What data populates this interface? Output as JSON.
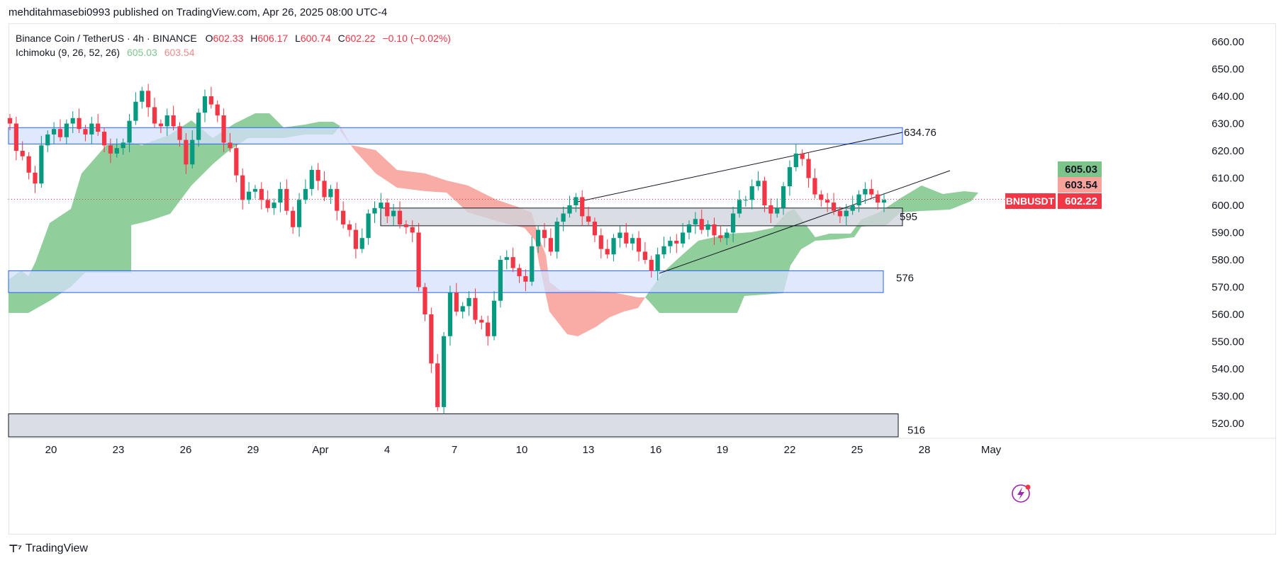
{
  "header": {
    "publisher_line": "mehditahmasebi0993 published on TradingView.com, Apr 26, 2025 08:00 UTC-4"
  },
  "legend": {
    "symbol": "Binance Coin / TetherUS · 4h · BINANCE",
    "open_label": "O",
    "open": "602.33",
    "high_label": "H",
    "high": "606.17",
    "low_label": "L",
    "low": "600.74",
    "close_label": "C",
    "close": "602.22",
    "change": "−0.10 (−0.02%)",
    "indicator": "Ichimoku (9, 26, 52, 26)",
    "indicator_v1": "605.03",
    "indicator_v2": "603.54"
  },
  "footer": {
    "brand": "TradingView"
  },
  "colors": {
    "up": "#089981",
    "down": "#f23645",
    "cloud_bull": "#7cc58a",
    "cloud_bear": "#f7a39b",
    "zone_blue": "#d4e0fb",
    "zone_gray": "#d1d4dc"
  },
  "chart_data": {
    "type": "candlestick",
    "title": "Binance Coin / TetherUS · 4h · BINANCE",
    "ylim": [
      515,
      665
    ],
    "y_ticks": [
      520,
      530,
      540,
      550,
      560,
      570,
      580,
      590,
      600,
      610,
      620,
      630,
      640,
      650,
      660
    ],
    "y_tick_labels": [
      "520.00",
      "530.00",
      "540.00",
      "550.00",
      "560.00",
      "570.00",
      "580.00",
      "590.00",
      "600.00",
      "610.00",
      "620.00",
      "630.00",
      "640.00",
      "650.00",
      "660.00"
    ],
    "x_tick_labels": [
      "20",
      "23",
      "26",
      "29",
      "Apr",
      "4",
      "7",
      "10",
      "13",
      "16",
      "19",
      "22",
      "25",
      "28",
      "May"
    ],
    "price_badges": [
      {
        "label": "605.03",
        "value": 605.03,
        "color": "#7cc58a"
      },
      {
        "label": "603.54",
        "value": 603.54,
        "color": "#f7a39b"
      },
      {
        "label": "602.22",
        "value": 602.22,
        "color": "#f23645",
        "tag": "BNBUSDT"
      }
    ],
    "zones": [
      {
        "name": "resistance-zone",
        "from": 622.5,
        "to": 628.5,
        "label": "",
        "color": "blue"
      },
      {
        "name": "mid-zone",
        "from": 592.5,
        "to": 599,
        "label": "595",
        "color": "gray"
      },
      {
        "name": "support-zone",
        "from": 568,
        "to": 576,
        "label": "576",
        "color": "blue"
      },
      {
        "name": "low-zone",
        "from": 511,
        "to": 523.5,
        "label": "516",
        "color": "gray"
      }
    ],
    "trendlines": [
      {
        "name": "upper-trendline",
        "label": "634.76"
      },
      {
        "name": "lower-trendline",
        "label": ""
      }
    ],
    "series": [
      {
        "name": "BNBUSDT",
        "values": [
          630,
          620,
          618,
          612,
          608,
          622,
          626,
          628,
          625,
          630,
          632,
          628,
          626,
          630,
          627,
          622,
          619,
          621,
          623,
          631,
          638,
          642,
          636,
          630,
          629,
          633,
          629,
          624,
          615,
          624,
          634,
          640,
          637,
          633,
          623,
          621,
          611,
          602,
          605,
          606,
          602,
          599,
          601,
          606,
          598,
          592,
          602,
          606,
          613,
          609,
          603,
          606,
          598,
          593,
          591,
          584,
          588,
          597,
          599,
          601,
          596,
          598,
          593,
          592,
          590,
          570,
          560,
          542,
          526,
          552,
          568,
          561,
          563,
          566,
          558,
          557,
          552,
          565,
          580,
          581,
          577,
          574,
          572,
          585,
          591,
          588,
          583,
          594,
          597,
          600,
          603,
          596,
          594,
          589,
          584,
          582,
          588,
          590,
          586,
          588,
          583,
          580,
          576,
          582,
          585,
          587,
          586,
          590,
          593,
          595,
          591,
          593,
          589,
          588,
          590,
          597,
          602,
          602,
          607,
          609,
          600,
          597,
          599,
          607,
          614,
          619,
          617,
          610,
          604,
          602,
          601,
          598,
          596,
          598,
          600,
          604,
          606,
          604,
          601,
          602
        ]
      },
      {
        "name": "Ichimoku Span A",
        "values": []
      },
      {
        "name": "Ichimoku Span B",
        "values": []
      }
    ]
  }
}
